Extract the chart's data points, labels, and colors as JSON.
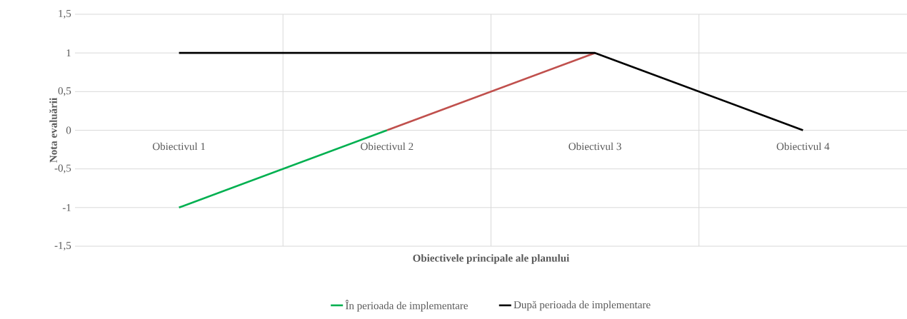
{
  "chart_data": {
    "type": "line",
    "xlabel": "Obiectivele principale ale planului",
    "ylabel": "Nota evaluării",
    "categories": [
      "Obiectivul 1",
      "Obiectivul 2",
      "Obiectivul 3",
      "Obiectivul 4"
    ],
    "series": [
      {
        "name": "În perioada de implementare",
        "color": "#00b050",
        "values": [
          -1,
          0,
          null,
          null
        ]
      },
      {
        "color": "#c0504d",
        "values": [
          null,
          0,
          1,
          null
        ]
      },
      {
        "name": "După perioada de implementare",
        "color": "#000000",
        "values": [
          1,
          1,
          1,
          0
        ]
      }
    ],
    "ylim": [
      -1.5,
      1.5
    ],
    "yticks": [
      {
        "value": -1.5,
        "label": "-1,5"
      },
      {
        "value": -1,
        "label": "-1"
      },
      {
        "value": -0.5,
        "label": "-0,5"
      },
      {
        "value": 0,
        "label": "0"
      },
      {
        "value": 0.5,
        "label": "0,5"
      },
      {
        "value": 1,
        "label": "1"
      },
      {
        "value": 1.5,
        "label": "1,5"
      }
    ],
    "grid": true,
    "legend": "bottom",
    "marker": "none",
    "line_style": "solid"
  }
}
